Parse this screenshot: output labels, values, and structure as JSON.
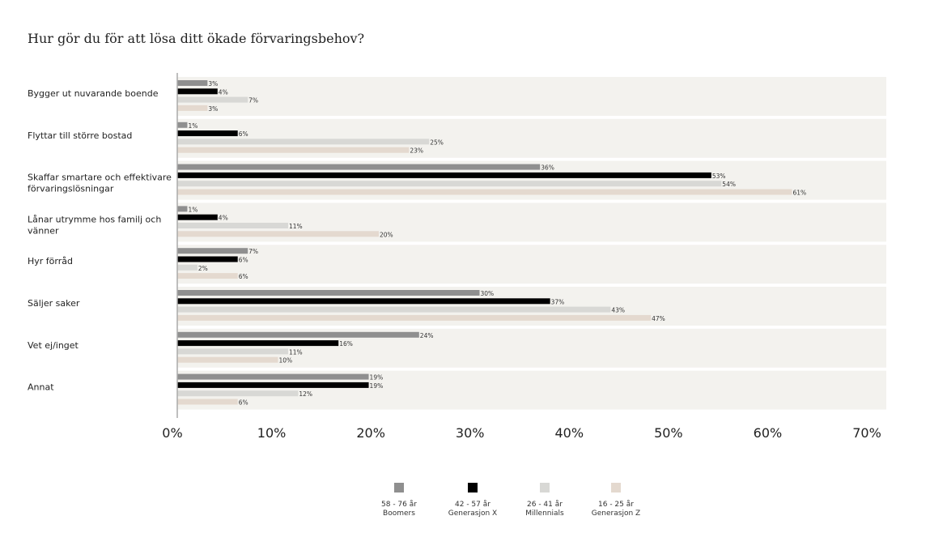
{
  "chart_data": {
    "type": "bar",
    "orientation": "horizontal",
    "title": "Hur gör du för att lösa ditt ökade förvaringsbehov?",
    "categories": [
      "Bygger ut nuvarande boende",
      "Flyttar till större bostad",
      "Skaffar smartare och effektivare förvaringslösningar",
      "Lånar utrymme hos familj och vänner",
      "Hyr förråd",
      "Säljer saker",
      "Vet ej/inget",
      "Annat"
    ],
    "series": [
      {
        "name": "58 - 76 år Boomers",
        "line1": "58 - 76 år",
        "line2": "Boomers",
        "color": "#8f8f8f",
        "values": [
          3,
          1,
          36,
          1,
          7,
          30,
          24,
          19
        ]
      },
      {
        "name": "42 - 57 år Generasjon X",
        "line1": "42 - 57 år",
        "line2": "Generasjon X",
        "color": "#000000",
        "values": [
          4,
          6,
          53,
          4,
          6,
          37,
          16,
          19
        ]
      },
      {
        "name": "26 - 41 år Millennials",
        "line1": "26 - 41 år",
        "line2": "Millennials",
        "color": "#d8d8d5",
        "values": [
          7,
          25,
          54,
          11,
          2,
          43,
          11,
          12
        ]
      },
      {
        "name": "16 - 25 år Generasjon Z",
        "line1": "16 - 25 år",
        "line2": "Generasjon Z",
        "color": "#e4d9cf",
        "values": [
          3,
          23,
          61,
          20,
          6,
          47,
          10,
          6
        ]
      }
    ],
    "xlim": [
      0,
      70
    ],
    "xticks": [
      "0%",
      "10%",
      "20%",
      "30%",
      "40%",
      "50%",
      "60%",
      "70%"
    ],
    "value_suffix": "%",
    "legend_position": "bottom",
    "panel_color": "#f3f2ee",
    "grid": false
  }
}
